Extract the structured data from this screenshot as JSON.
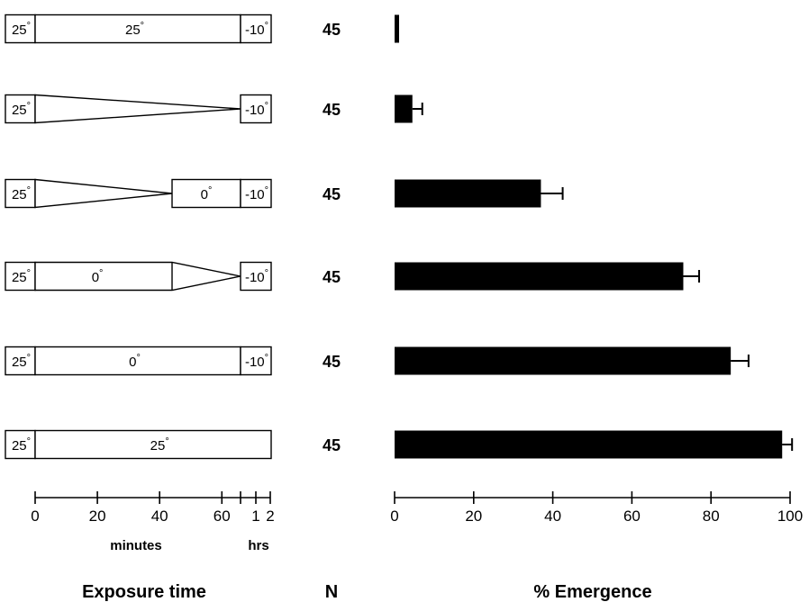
{
  "chart_data": {
    "type": "bar",
    "orientation": "horizontal",
    "xlabel": "% Emergence",
    "xlim": [
      0,
      100
    ],
    "x_ticks": [
      "0",
      "20",
      "40",
      "60",
      "80",
      "100"
    ],
    "n_header": "N",
    "rows": [
      {
        "n": "45",
        "value": 0.8,
        "error": 0,
        "protocol": {
          "shape": "boxes",
          "segments": [
            {
              "label": "25",
              "degree": "°",
              "from": "start",
              "to": 0
            },
            {
              "label": "25",
              "degree": "°",
              "from": 0,
              "to": 66
            },
            {
              "label": "-10",
              "degree": "°",
              "from": 66,
              "to": "2h"
            }
          ]
        }
      },
      {
        "n": "45",
        "value": 4.5,
        "error": 2.5,
        "protocol": {
          "shape": "ramp-to-end",
          "segments": [
            {
              "label": "25",
              "degree": "°",
              "from": "start",
              "to": 0
            },
            {
              "label": "-10",
              "degree": "°",
              "from": 66,
              "to": "2h"
            }
          ]
        }
      },
      {
        "n": "45",
        "value": 37.0,
        "error": 5.5,
        "protocol": {
          "shape": "ramp-then-box",
          "segments": [
            {
              "label": "25",
              "degree": "°",
              "from": "start",
              "to": 0
            },
            {
              "label": "0",
              "degree": "°",
              "from": 44,
              "to": 66
            },
            {
              "label": "-10",
              "degree": "°",
              "from": 66,
              "to": "2h"
            }
          ]
        }
      },
      {
        "n": "45",
        "value": 73.0,
        "error": 4.0,
        "protocol": {
          "shape": "box-then-ramp",
          "segments": [
            {
              "label": "25",
              "degree": "°",
              "from": "start",
              "to": 0
            },
            {
              "label": "0",
              "degree": "°",
              "from": 0,
              "to": 44
            },
            {
              "label": "-10",
              "degree": "°",
              "from": 66,
              "to": "2h"
            }
          ]
        }
      },
      {
        "n": "45",
        "value": 85.0,
        "error": 4.5,
        "protocol": {
          "shape": "boxes",
          "segments": [
            {
              "label": "25",
              "degree": "°",
              "from": "start",
              "to": 0
            },
            {
              "label": "0",
              "degree": "°",
              "from": 0,
              "to": 66
            },
            {
              "label": "-10",
              "degree": "°",
              "from": 66,
              "to": "2h"
            }
          ]
        }
      },
      {
        "n": "45",
        "value": 98.0,
        "error": 2.5,
        "protocol": {
          "shape": "boxes",
          "segments": [
            {
              "label": "25",
              "degree": "°",
              "from": "start",
              "to": 0
            },
            {
              "label": "25",
              "degree": "°",
              "from": 0,
              "to": "2h"
            }
          ]
        }
      }
    ],
    "exposure_axis": {
      "title": "Exposure time",
      "minute_ticks": [
        "0",
        "20",
        "40",
        "60"
      ],
      "hour_ticks": [
        "1",
        "2"
      ],
      "minutes_label": "minutes",
      "hours_label": "hrs"
    },
    "bar_color": "#000000"
  }
}
